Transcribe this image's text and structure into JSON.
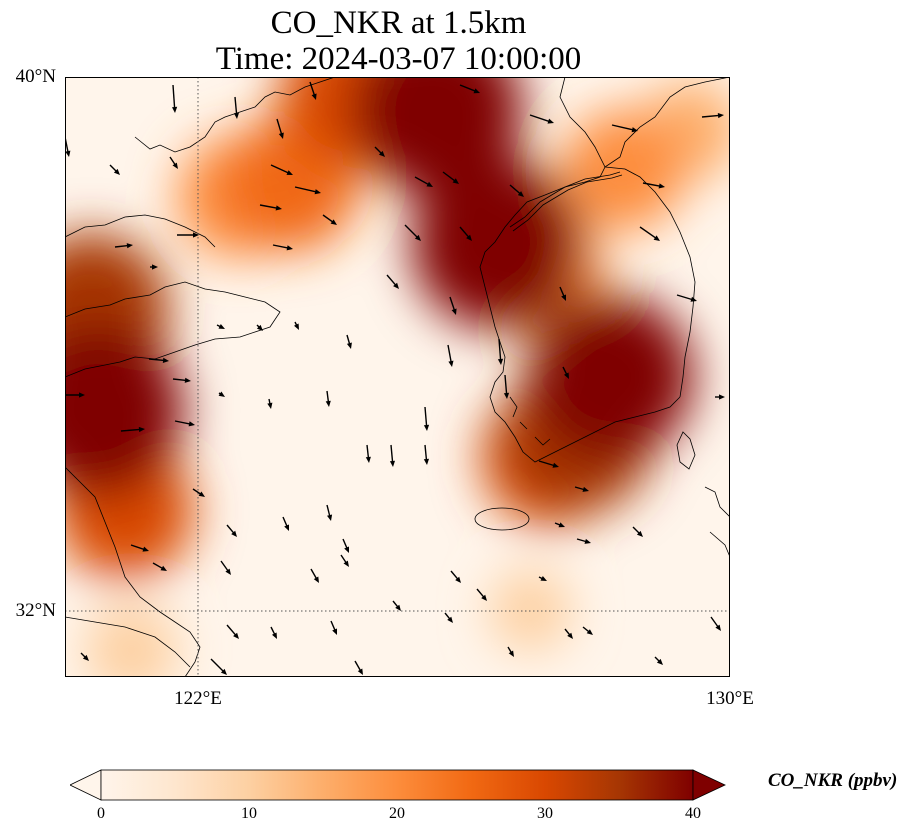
{
  "title_line1": "CO_NKR at 1.5km",
  "title_line2": "Time: 2024-03-07 10:00:00",
  "axes": {
    "lat_labels": [
      {
        "value": 40,
        "text": "40°N"
      },
      {
        "value": 32,
        "text": "32°N"
      }
    ],
    "lon_labels": [
      {
        "value": 122,
        "text": "122°E"
      },
      {
        "value": 130,
        "text": "130°E"
      }
    ],
    "lon_range": [
      120,
      130
    ],
    "lat_range": [
      31,
      40
    ],
    "gridlines": "dotted"
  },
  "colorbar": {
    "label": "CO_NKR (ppbv)",
    "min": 0,
    "max": 40,
    "ticks": [
      "0",
      "10",
      "20",
      "30",
      "40"
    ],
    "colormap": [
      "#fff5eb",
      "#fee6ce",
      "#fdd0a2",
      "#fdae6b",
      "#fd8d3c",
      "#f16913",
      "#d94801",
      "#a63603",
      "#7f0000"
    ],
    "extend": "both"
  },
  "chart_data": {
    "type": "heatmap",
    "title": "CO_NKR at 1.5km",
    "subtitle": "Time: 2024-03-07 10:00:00",
    "variable": "CO_NKR (ppbv)",
    "lon_range": [
      120,
      130
    ],
    "lat_range": [
      31,
      40
    ],
    "hotspots": [
      {
        "lon": 120.5,
        "lat": 35.0,
        "value": 40
      },
      {
        "lon": 120.4,
        "lat": 36.5,
        "value": 34
      },
      {
        "lon": 120.9,
        "lat": 33.5,
        "value": 28
      },
      {
        "lon": 125.6,
        "lat": 39.5,
        "value": 40
      },
      {
        "lon": 124.3,
        "lat": 39.7,
        "value": 30
      },
      {
        "lon": 123.4,
        "lat": 38.4,
        "value": 27
      },
      {
        "lon": 122.6,
        "lat": 38.2,
        "value": 22
      },
      {
        "lon": 126.5,
        "lat": 37.5,
        "value": 40
      },
      {
        "lon": 127.2,
        "lat": 37.0,
        "value": 22
      },
      {
        "lon": 128.2,
        "lat": 35.5,
        "value": 38
      },
      {
        "lon": 127.7,
        "lat": 34.6,
        "value": 33
      },
      {
        "lon": 127.3,
        "lat": 34.3,
        "value": 28
      },
      {
        "lon": 128.4,
        "lat": 38.6,
        "value": 22
      },
      {
        "lon": 129.4,
        "lat": 39.2,
        "value": 14
      },
      {
        "lon": 121.0,
        "lat": 31.4,
        "value": 12
      },
      {
        "lon": 127.0,
        "lat": 32.0,
        "value": 8
      }
    ]
  }
}
